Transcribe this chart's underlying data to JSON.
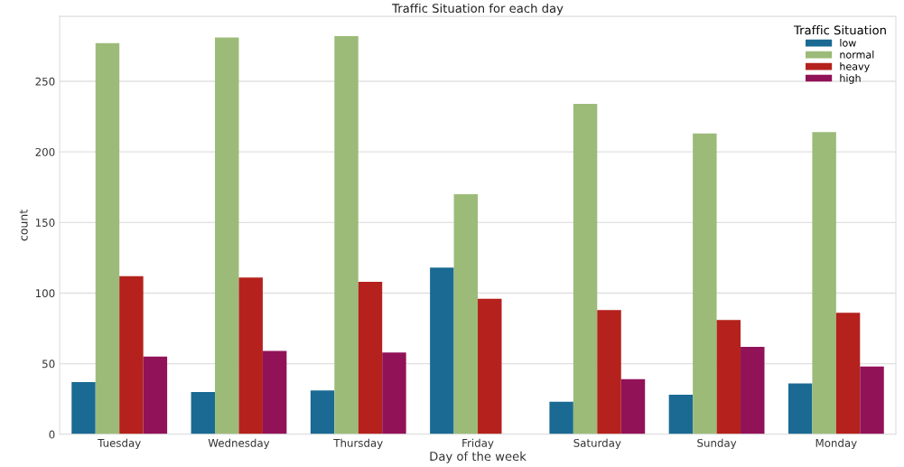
{
  "chart_data": {
    "type": "bar",
    "title": "Traffic Situation for each day",
    "xlabel": "Day of the week",
    "ylabel": "count",
    "legend_title": "Traffic Situation",
    "categories": [
      "Tuesday",
      "Wednesday",
      "Thursday",
      "Friday",
      "Saturday",
      "Sunday",
      "Monday"
    ],
    "series": [
      {
        "name": "low",
        "color": "#1a6a93",
        "values": [
          37,
          30,
          31,
          118,
          23,
          28,
          36
        ]
      },
      {
        "name": "normal",
        "color": "#9cbb79",
        "values": [
          277,
          281,
          282,
          170,
          234,
          213,
          214
        ]
      },
      {
        "name": "heavy",
        "color": "#b5211c",
        "values": [
          112,
          111,
          108,
          96,
          88,
          81,
          86
        ]
      },
      {
        "name": "high",
        "color": "#921258",
        "values": [
          55,
          59,
          58,
          null,
          39,
          62,
          48
        ]
      }
    ],
    "ylim": [
      0,
      296
    ],
    "yticks": [
      0,
      50,
      100,
      150,
      200,
      250
    ],
    "grid": "y",
    "legend": "top right"
  }
}
